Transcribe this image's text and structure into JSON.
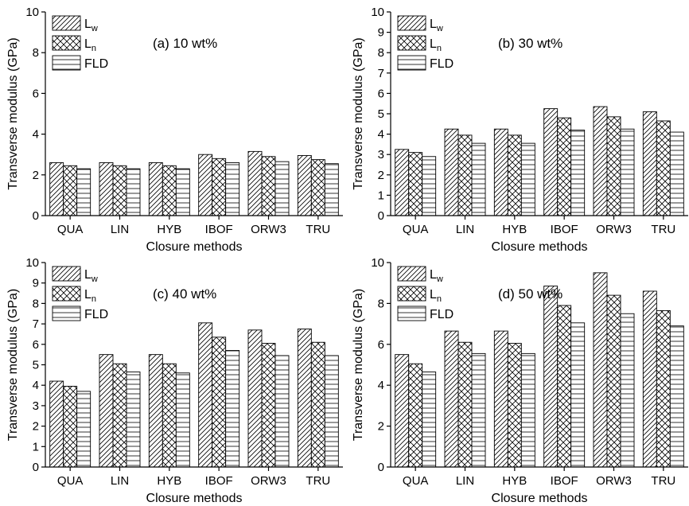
{
  "chart_data": [
    {
      "type": "bar",
      "panel_label": "(a) 10 wt%",
      "xlabel": "Closure methods",
      "ylabel": "Transverse modulus (GPa)",
      "categories": [
        "QUA",
        "LIN",
        "HYB",
        "IBOF",
        "ORW3",
        "TRU"
      ],
      "ylim": [
        0,
        10
      ],
      "yticks": [
        0,
        2,
        4,
        6,
        8,
        10
      ],
      "legend_position": "top-left",
      "series": [
        {
          "name": "L",
          "subscript": "w",
          "values": [
            2.6,
            2.6,
            2.6,
            3.0,
            3.15,
            2.95
          ]
        },
        {
          "name": "L",
          "subscript": "n",
          "values": [
            2.45,
            2.45,
            2.45,
            2.8,
            2.9,
            2.75
          ]
        },
        {
          "name": "FLD",
          "subscript": "",
          "values": [
            2.3,
            2.3,
            2.3,
            2.6,
            2.65,
            2.55
          ]
        }
      ]
    },
    {
      "type": "bar",
      "panel_label": "(b) 30 wt%",
      "xlabel": "Closure methods",
      "ylabel": "Transverse modulus (GPa)",
      "categories": [
        "QUA",
        "LIN",
        "HYB",
        "IBOF",
        "ORW3",
        "TRU"
      ],
      "ylim": [
        0,
        10
      ],
      "yticks": [
        0,
        1,
        2,
        3,
        4,
        5,
        6,
        7,
        8,
        9,
        10
      ],
      "legend_position": "top-left",
      "series": [
        {
          "name": "L",
          "subscript": "w",
          "values": [
            3.25,
            4.25,
            4.25,
            5.25,
            5.35,
            5.1
          ]
        },
        {
          "name": "L",
          "subscript": "n",
          "values": [
            3.1,
            3.95,
            3.95,
            4.8,
            4.85,
            4.65
          ]
        },
        {
          "name": "FLD",
          "subscript": "",
          "values": [
            2.9,
            3.55,
            3.55,
            4.2,
            4.25,
            4.1
          ]
        }
      ]
    },
    {
      "type": "bar",
      "panel_label": "(c) 40 wt%",
      "xlabel": "Closure methods",
      "ylabel": "Transverse modulus (GPa)",
      "categories": [
        "QUA",
        "LIN",
        "HYB",
        "IBOF",
        "ORW3",
        "TRU"
      ],
      "ylim": [
        0,
        10
      ],
      "yticks": [
        0,
        1,
        2,
        3,
        4,
        5,
        6,
        7,
        8,
        9,
        10
      ],
      "legend_position": "top-left",
      "series": [
        {
          "name": "L",
          "subscript": "w",
          "values": [
            4.2,
            5.5,
            5.5,
            7.05,
            6.7,
            6.75
          ]
        },
        {
          "name": "L",
          "subscript": "n",
          "values": [
            3.95,
            5.05,
            5.05,
            6.35,
            6.05,
            6.1
          ]
        },
        {
          "name": "FLD",
          "subscript": "",
          "values": [
            3.7,
            4.65,
            4.6,
            5.7,
            5.45,
            5.45
          ]
        }
      ]
    },
    {
      "type": "bar",
      "panel_label": "(d) 50 wt%",
      "xlabel": "Closure methods",
      "ylabel": "Transverse modulus (GPa)",
      "categories": [
        "QUA",
        "LIN",
        "HYB",
        "IBOF",
        "ORW3",
        "TRU"
      ],
      "ylim": [
        0,
        10
      ],
      "yticks": [
        0,
        2,
        4,
        6,
        8,
        10
      ],
      "legend_position": "top-left",
      "series": [
        {
          "name": "L",
          "subscript": "w",
          "values": [
            5.5,
            6.65,
            6.65,
            8.85,
            9.5,
            8.6
          ]
        },
        {
          "name": "L",
          "subscript": "n",
          "values": [
            5.05,
            6.1,
            6.05,
            7.9,
            8.4,
            7.65
          ]
        },
        {
          "name": "FLD",
          "subscript": "",
          "values": [
            4.65,
            5.55,
            5.55,
            7.05,
            7.5,
            6.9
          ]
        }
      ]
    }
  ]
}
